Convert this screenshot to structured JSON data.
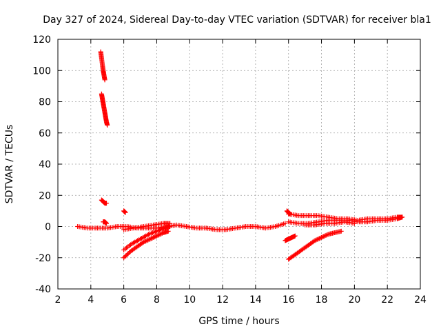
{
  "chart_data": {
    "type": "scatter",
    "title": "Day 327 of 2024, Sidereal Day-to-day VTEC variation (SDTVAR) for receiver bla1",
    "xlabel": "GPS time / hours",
    "ylabel": "SDTVAR / TECUs",
    "xlim": [
      2,
      24
    ],
    "ylim": [
      -40,
      120
    ],
    "xticks": [
      2,
      4,
      6,
      8,
      10,
      12,
      14,
      16,
      18,
      20,
      22,
      24
    ],
    "yticks": [
      -40,
      -20,
      0,
      20,
      40,
      60,
      80,
      100,
      120
    ],
    "grid": true,
    "marker": "+",
    "color": "#ff0000",
    "segments": [
      {
        "name": "main-band",
        "x": [
          3.2,
          3.8,
          4.4,
          5.0,
          5.6,
          6.2,
          6.8,
          7.4,
          8.0,
          8.6,
          9.2,
          9.8,
          10.4,
          11.0,
          11.6,
          12.2,
          12.8,
          13.4,
          14.0,
          14.6,
          15.2,
          15.8
        ],
        "y": [
          0,
          -1,
          -1,
          -1,
          0,
          0,
          -1,
          -1,
          -1,
          0,
          1,
          0,
          -1,
          -1,
          -2,
          -2,
          -1,
          0,
          0,
          -1,
          0,
          2
        ]
      },
      {
        "name": "spike-a",
        "x": [
          4.6,
          4.65,
          4.7,
          4.75,
          4.8,
          4.85
        ],
        "y": [
          112,
          108,
          104,
          100,
          97,
          94
        ]
      },
      {
        "name": "spike-b",
        "x": [
          4.65,
          4.7,
          4.75,
          4.8,
          4.85,
          4.9,
          4.95,
          5.0
        ],
        "y": [
          85,
          82,
          79,
          76,
          73,
          70,
          67,
          65
        ]
      },
      {
        "name": "spike-c",
        "x": [
          4.65,
          4.75,
          4.85,
          4.95
        ],
        "y": [
          17,
          16,
          15,
          15
        ]
      },
      {
        "name": "spike-d",
        "x": [
          4.75,
          4.85,
          4.95
        ],
        "y": [
          3,
          3,
          2
        ]
      },
      {
        "name": "blip-6",
        "x": [
          6.0,
          6.1
        ],
        "y": [
          10,
          9
        ]
      },
      {
        "name": "arc-low-1",
        "x": [
          6.0,
          6.4,
          6.8,
          7.2,
          7.6,
          8.0,
          8.4,
          8.7
        ],
        "y": [
          -20,
          -16,
          -13,
          -10,
          -8,
          -6,
          -4,
          -3
        ]
      },
      {
        "name": "arc-low-2",
        "x": [
          6.0,
          6.5,
          7.0,
          7.5,
          8.0,
          8.5,
          8.8
        ],
        "y": [
          -15,
          -11,
          -8,
          -5,
          -3,
          -1,
          0
        ]
      },
      {
        "name": "arc-low-3",
        "x": [
          6.0,
          6.6,
          7.2,
          7.8,
          8.4,
          8.8
        ],
        "y": [
          -2,
          -1,
          0,
          1,
          2,
          2
        ]
      },
      {
        "name": "blip-16",
        "x": [
          15.9,
          16.0,
          16.1
        ],
        "y": [
          10,
          9,
          8
        ]
      },
      {
        "name": "arc-late-1",
        "x": [
          16.0,
          16.4,
          16.8,
          17.2,
          17.6,
          18.0,
          18.4,
          18.8,
          19.2
        ],
        "y": [
          -21,
          -18,
          -15,
          -12,
          -9,
          -7,
          -5,
          -4,
          -3
        ]
      },
      {
        "name": "arc-late-2",
        "x": [
          15.8,
          16.0,
          16.2,
          16.4
        ],
        "y": [
          -9,
          -8,
          -7,
          -6
        ]
      },
      {
        "name": "upper-late",
        "x": [
          16.0,
          16.6,
          17.2,
          17.8,
          18.4,
          19.0,
          19.6,
          20.2,
          20.8,
          21.4,
          22.0,
          22.6,
          22.9
        ],
        "y": [
          8,
          7,
          7,
          7,
          6,
          5,
          5,
          4,
          5,
          5,
          5,
          6,
          6
        ]
      },
      {
        "name": "mid-late",
        "x": [
          16.0,
          16.6,
          17.2,
          17.8,
          18.4,
          19.0,
          19.6,
          20.2,
          20.8,
          21.4,
          22.0,
          22.6,
          22.9
        ],
        "y": [
          3,
          2,
          2,
          3,
          4,
          4,
          4,
          3,
          3,
          4,
          4,
          5,
          6
        ]
      },
      {
        "name": "lower-late",
        "x": [
          17.0,
          17.6,
          18.2,
          18.8,
          19.4,
          20.0
        ],
        "y": [
          1,
          1,
          2,
          2,
          3,
          2
        ]
      }
    ]
  }
}
